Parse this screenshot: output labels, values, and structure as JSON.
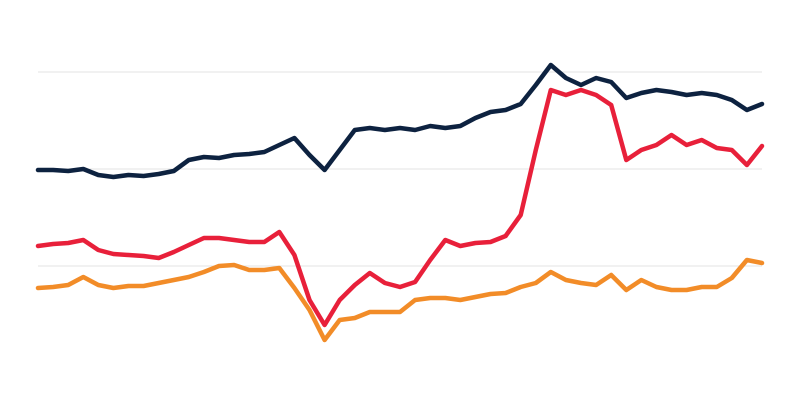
{
  "chart_data": {
    "type": "line",
    "x": [
      0,
      1,
      2,
      3,
      4,
      5,
      6,
      7,
      8,
      9,
      10,
      11,
      12,
      13,
      14,
      15,
      16,
      17,
      18,
      19,
      20,
      21,
      22,
      23,
      24,
      25,
      26,
      27,
      28,
      29,
      30,
      31,
      32,
      33,
      34,
      35,
      36,
      37,
      38,
      39,
      40,
      41,
      42,
      43,
      44,
      45,
      46,
      47,
      48
    ],
    "xlim": [
      0,
      48
    ],
    "ylim": [
      0,
      350
    ],
    "yticks": [
      97,
      194,
      291
    ],
    "grid": true,
    "series": [
      {
        "color": "#0d2240",
        "values": [
          193,
          193,
          192,
          194,
          188,
          186,
          188,
          187,
          189,
          192,
          203,
          206,
          205,
          208,
          209,
          211,
          218,
          225,
          208,
          193,
          213,
          233,
          235,
          233,
          235,
          233,
          237,
          235,
          237,
          245,
          251,
          253,
          259,
          278,
          298,
          285,
          278,
          285,
          281,
          265,
          270,
          273,
          271,
          268,
          270,
          268,
          263,
          253,
          259
        ]
      },
      {
        "color": "#e8203a",
        "values": [
          117,
          119,
          120,
          123,
          113,
          109,
          108,
          107,
          105,
          111,
          118,
          125,
          125,
          123,
          121,
          121,
          131,
          108,
          63,
          38,
          63,
          78,
          90,
          80,
          76,
          81,
          103,
          123,
          117,
          120,
          121,
          127,
          148,
          213,
          273,
          268,
          273,
          268,
          258,
          203,
          213,
          218,
          228,
          218,
          223,
          215,
          213,
          198,
          217
        ]
      },
      {
        "color": "#f28c28",
        "values": [
          75,
          76,
          78,
          86,
          78,
          75,
          77,
          77,
          80,
          83,
          86,
          91,
          97,
          98,
          93,
          93,
          95,
          75,
          53,
          23,
          43,
          45,
          51,
          51,
          51,
          63,
          65,
          65,
          63,
          66,
          69,
          70,
          76,
          80,
          91,
          83,
          80,
          78,
          88,
          73,
          83,
          76,
          73,
          73,
          76,
          76,
          85,
          103,
          100
        ]
      }
    ]
  }
}
